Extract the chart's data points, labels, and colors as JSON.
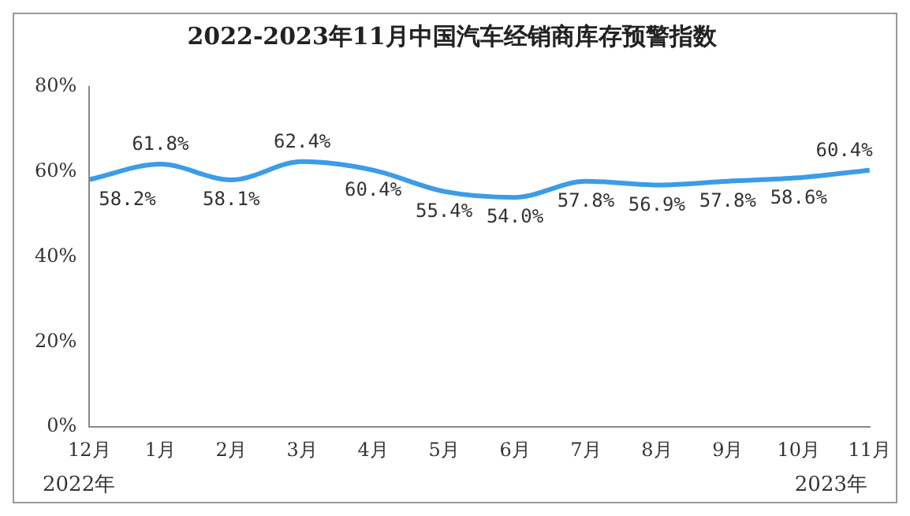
{
  "chart_data": {
    "type": "line",
    "title": "2022-2023年11月中国汽车经销商库存预警指数",
    "categories": [
      "12月",
      "1月",
      "2月",
      "3月",
      "4月",
      "5月",
      "6月",
      "7月",
      "8月",
      "9月",
      "10月",
      "11月"
    ],
    "series": [
      {
        "color": "#3c9ce8",
        "values": [
          58.2,
          61.8,
          58.1,
          62.4,
          60.4,
          55.4,
          54.0,
          57.8,
          56.9,
          57.8,
          58.6,
          60.4
        ],
        "value_labels": [
          "58.2%",
          "61.8%",
          "58.1%",
          "62.4%",
          "60.4%",
          "55.4%",
          "54.0%",
          "57.8%",
          "56.9%",
          "57.8%",
          "58.6%",
          "60.4%"
        ]
      }
    ],
    "ylim": [
      0,
      80
    ],
    "yticks": [
      {
        "value": 0,
        "label": "0%"
      },
      {
        "value": 20,
        "label": "20%"
      },
      {
        "value": 40,
        "label": "40%"
      },
      {
        "value": 60,
        "label": "60%"
      },
      {
        "value": 80,
        "label": "80%"
      }
    ],
    "grid": false,
    "legend": false,
    "marker": "none",
    "line_style": "solid",
    "annotations": [
      "2022年",
      "2023年"
    ]
  }
}
